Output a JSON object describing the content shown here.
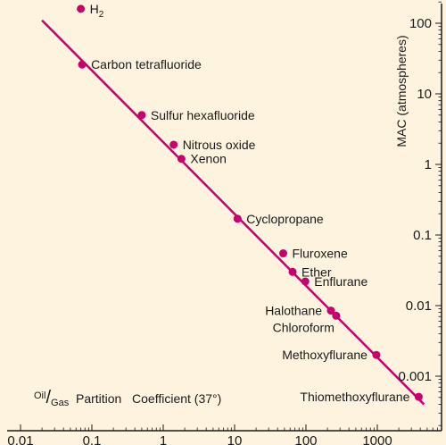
{
  "colors": {
    "background": "#fdf3df",
    "accent": "#c8006e",
    "axis": "#1a1a1a"
  },
  "chart_data": {
    "type": "scatter",
    "title": "",
    "x_scale": "log",
    "y_scale": "log",
    "xlabel": {
      "prefix_top": "Oil",
      "prefix_slash": "/",
      "prefix_bottom": "Gas",
      "rest": "  Partition   Coefficient (37°)"
    },
    "ylabel": "MAC (atmospheres)",
    "x_ticks": [
      {
        "value": 0.01,
        "label": "0.01"
      },
      {
        "value": 0.1,
        "label": "0.1"
      },
      {
        "value": 1,
        "label": "1"
      },
      {
        "value": 10,
        "label": "10"
      },
      {
        "value": 100,
        "label": "100"
      },
      {
        "value": 1000,
        "label": "1000"
      }
    ],
    "y_ticks": [
      {
        "value": 100,
        "label": "100"
      },
      {
        "value": 10,
        "label": "10"
      },
      {
        "value": 1,
        "label": "1"
      },
      {
        "value": 0.1,
        "label": "0.1"
      },
      {
        "value": 0.01,
        "label": "0.01"
      },
      {
        "value": 0.001,
        "label": "0.001"
      }
    ],
    "fit_line": {
      "from": [
        0.02,
        110
      ],
      "to": [
        4500,
        0.0004
      ]
    },
    "points": [
      {
        "name": "H",
        "sub": "2",
        "x": 0.07,
        "y": 160,
        "label_side": "right"
      },
      {
        "name": "Carbon tetrafluoride",
        "x": 0.073,
        "y": 26,
        "label_side": "right"
      },
      {
        "name": "Sulfur hexafluoride",
        "x": 0.5,
        "y": 5,
        "label_side": "right"
      },
      {
        "name": "Nitrous oxide",
        "x": 1.4,
        "y": 1.9,
        "label_side": "right"
      },
      {
        "name": "Xenon",
        "x": 1.8,
        "y": 1.2,
        "label_side": "right"
      },
      {
        "name": "Cyclopropane",
        "x": 11,
        "y": 0.17,
        "label_side": "right"
      },
      {
        "name": "Fluroxene",
        "x": 48,
        "y": 0.055,
        "label_side": "right"
      },
      {
        "name": "Ether",
        "x": 65,
        "y": 0.03,
        "label_side": "right"
      },
      {
        "name": "Enflurane",
        "x": 98,
        "y": 0.022,
        "label_side": "right"
      },
      {
        "name": "Halothane",
        "x": 224,
        "y": 0.0085,
        "label_side": "left"
      },
      {
        "name": "Chloroform",
        "x": 265,
        "y": 0.0072,
        "label_side": "below-left"
      },
      {
        "name": "Methoxyflurane",
        "x": 970,
        "y": 0.002,
        "label_side": "left"
      },
      {
        "name": "Thiomethoxyflurane",
        "x": 3800,
        "y": 0.00051,
        "label_side": "left"
      }
    ]
  }
}
